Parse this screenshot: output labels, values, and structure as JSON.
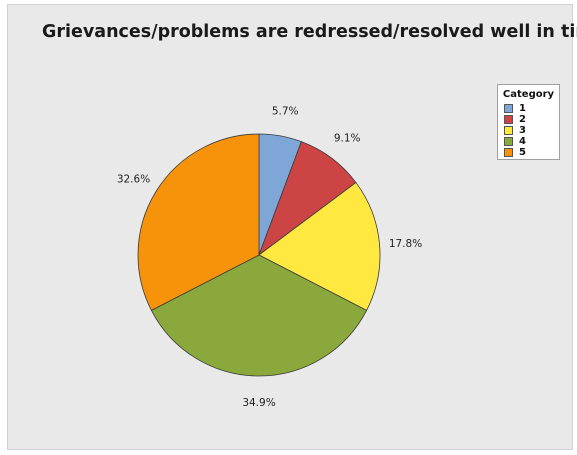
{
  "chart_data": {
    "type": "pie",
    "title": "Grievances/problems are redressed/resolved well in time",
    "legend": {
      "title": "Category",
      "placement": "top-right"
    },
    "slices": [
      {
        "category": "1",
        "value": 5.7,
        "label": "5.7%",
        "color": "#7ea7d8"
      },
      {
        "category": "2",
        "value": 9.1,
        "label": "9.1%",
        "color": "#cc4444"
      },
      {
        "category": "3",
        "value": 17.8,
        "label": "17.8%",
        "color": "#ffe840"
      },
      {
        "category": "4",
        "value": 34.9,
        "label": "34.9%",
        "color": "#8aa83c"
      },
      {
        "category": "5",
        "value": 32.6,
        "label": "32.6%",
        "color": "#f7930b"
      }
    ]
  }
}
